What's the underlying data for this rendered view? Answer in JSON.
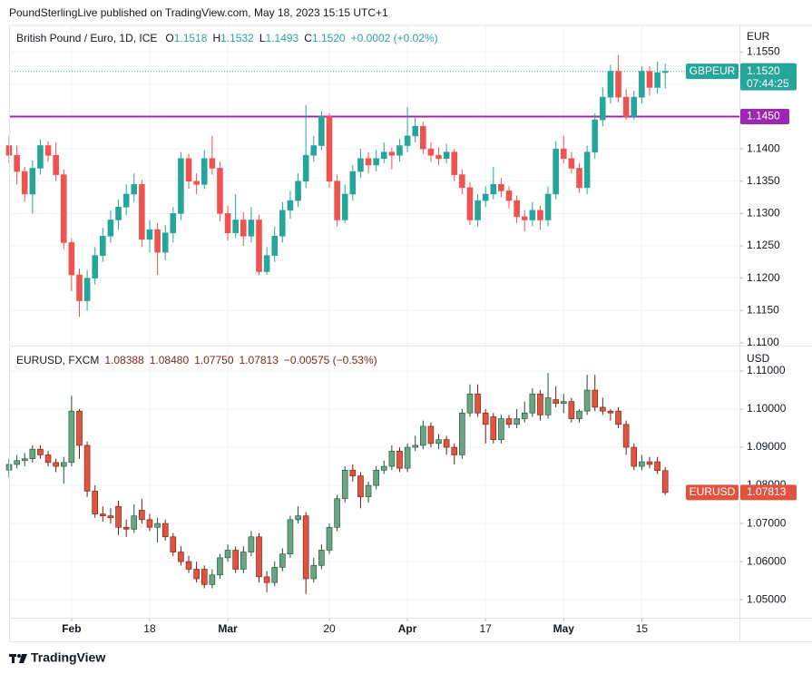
{
  "published": "PoundSterlingLive published on TradingView.com, May 18, 2023 15:15 UTC+1",
  "brand": "TradingView",
  "chart_data": [
    {
      "type": "candlestick",
      "symbol_title": "British Pound / Euro, 1D, ICE",
      "ohlc_legend": [
        {
          "label": "O",
          "value": "1.1518"
        },
        {
          "label": "H",
          "value": "1.1532"
        },
        {
          "label": "L",
          "value": "1.1493"
        },
        {
          "label": "C",
          "value": "1.1520"
        }
      ],
      "change": "+0.0002 (+0.02%)",
      "currency": "EUR",
      "symbol": "GBPEUR",
      "last_price": {
        "value": 1.152,
        "label": "1.1520"
      },
      "countdown": "07:44:25",
      "hline": {
        "value": 1.145,
        "label": "1.1450",
        "color": "#9c27b0"
      },
      "up_color": "#26a69a",
      "down_color": "#ef5350",
      "wick_up": "#26a69a",
      "wick_down": "#ef5350",
      "label_color": "#26a69a",
      "legend_color": "#26a69a",
      "grid": true,
      "xlim": [
        0,
        93.5
      ],
      "ylim": [
        1.1097,
        1.1591
      ],
      "yticks": [
        {
          "value": 1.11,
          "label": "1.1100"
        },
        {
          "value": 1.115,
          "label": "1.1150"
        },
        {
          "value": 1.12,
          "label": "1.1200"
        },
        {
          "value": 1.125,
          "label": "1.1250"
        },
        {
          "value": 1.13,
          "label": "1.1300"
        },
        {
          "value": 1.135,
          "label": "1.1350"
        },
        {
          "value": 1.14,
          "label": "1.1400"
        },
        {
          "value": 1.145,
          "label": "1.1450"
        },
        {
          "value": 1.15,
          "label": "1.1500"
        },
        {
          "value": 1.155,
          "label": "1.1550"
        }
      ],
      "ohlc": [
        [
          1.1405,
          1.142,
          1.1378,
          1.139
        ],
        [
          1.139,
          1.1405,
          1.1345,
          1.1365
        ],
        [
          1.1365,
          1.1372,
          1.1318,
          1.133
        ],
        [
          1.133,
          1.1382,
          1.13,
          1.137
        ],
        [
          1.137,
          1.1415,
          1.136,
          1.1405
        ],
        [
          1.1405,
          1.1412,
          1.138,
          1.139
        ],
        [
          1.139,
          1.141,
          1.135,
          1.136
        ],
        [
          1.136,
          1.1368,
          1.1245,
          1.1255
        ],
        [
          1.1255,
          1.1262,
          1.118,
          1.1205
        ],
        [
          1.1205,
          1.1215,
          1.114,
          1.1165
        ],
        [
          1.1165,
          1.1212,
          1.115,
          1.12
        ],
        [
          1.12,
          1.1248,
          1.119,
          1.1235
        ],
        [
          1.1235,
          1.1278,
          1.1225,
          1.1265
        ],
        [
          1.1265,
          1.1305,
          1.1255,
          1.129
        ],
        [
          1.129,
          1.1322,
          1.1275,
          1.131
        ],
        [
          1.131,
          1.1345,
          1.1298,
          1.133
        ],
        [
          1.133,
          1.1362,
          1.1318,
          1.1345
        ],
        [
          1.1345,
          1.1352,
          1.1248,
          1.126
        ],
        [
          1.126,
          1.129,
          1.124,
          1.1275
        ],
        [
          1.1275,
          1.1285,
          1.1205,
          1.124
        ],
        [
          1.124,
          1.1282,
          1.1228,
          1.127
        ],
        [
          1.127,
          1.131,
          1.1255,
          1.13
        ],
        [
          1.13,
          1.1395,
          1.129,
          1.1385
        ],
        [
          1.1385,
          1.1392,
          1.1338,
          1.135
        ],
        [
          1.135,
          1.1362,
          1.133,
          1.1345
        ],
        [
          1.1345,
          1.1398,
          1.1338,
          1.1385
        ],
        [
          1.1385,
          1.142,
          1.136,
          1.137
        ],
        [
          1.137,
          1.138,
          1.1288,
          1.13
        ],
        [
          1.13,
          1.1312,
          1.1258,
          1.127
        ],
        [
          1.127,
          1.133,
          1.1262,
          1.129
        ],
        [
          1.129,
          1.1302,
          1.125,
          1.1265
        ],
        [
          1.1265,
          1.131,
          1.1255,
          1.129
        ],
        [
          1.129,
          1.1298,
          1.1205,
          1.121
        ],
        [
          1.121,
          1.1248,
          1.1205,
          1.1235
        ],
        [
          1.1235,
          1.128,
          1.1225,
          1.1265
        ],
        [
          1.1265,
          1.1318,
          1.1255,
          1.1305
        ],
        [
          1.1305,
          1.1335,
          1.1292,
          1.132
        ],
        [
          1.132,
          1.1362,
          1.131,
          1.135
        ],
        [
          1.135,
          1.1468,
          1.134,
          1.139
        ],
        [
          1.139,
          1.142,
          1.138,
          1.1405
        ],
        [
          1.1405,
          1.1458,
          1.1398,
          1.145
        ],
        [
          1.145,
          1.1455,
          1.134,
          1.135
        ],
        [
          1.135,
          1.136,
          1.128,
          1.129
        ],
        [
          1.129,
          1.1345,
          1.1285,
          1.133
        ],
        [
          1.133,
          1.1375,
          1.132,
          1.1365
        ],
        [
          1.1365,
          1.14,
          1.1355,
          1.1385
        ],
        [
          1.1385,
          1.1395,
          1.1362,
          1.1375
        ],
        [
          1.1375,
          1.1398,
          1.1365,
          1.1385
        ],
        [
          1.1385,
          1.141,
          1.1378,
          1.1395
        ],
        [
          1.1395,
          1.1402,
          1.1368,
          1.139
        ],
        [
          1.139,
          1.1415,
          1.138,
          1.1405
        ],
        [
          1.1405,
          1.1465,
          1.1395,
          1.142
        ],
        [
          1.142,
          1.1448,
          1.141,
          1.1435
        ],
        [
          1.1435,
          1.1442,
          1.1392,
          1.14
        ],
        [
          1.14,
          1.141,
          1.138,
          1.139
        ],
        [
          1.139,
          1.1402,
          1.1375,
          1.1385
        ],
        [
          1.1385,
          1.1408,
          1.1378,
          1.1395
        ],
        [
          1.1395,
          1.14,
          1.135,
          1.136
        ],
        [
          1.136,
          1.1368,
          1.133,
          1.134
        ],
        [
          1.134,
          1.1348,
          1.1282,
          1.129
        ],
        [
          1.129,
          1.133,
          1.128,
          1.132
        ],
        [
          1.132,
          1.1342,
          1.131,
          1.133
        ],
        [
          1.133,
          1.1372,
          1.1322,
          1.1345
        ],
        [
          1.1345,
          1.1355,
          1.1325,
          1.1335
        ],
        [
          1.1335,
          1.1342,
          1.1308,
          1.132
        ],
        [
          1.132,
          1.1328,
          1.1285,
          1.1295
        ],
        [
          1.1295,
          1.1305,
          1.1272,
          1.129
        ],
        [
          1.129,
          1.1318,
          1.128,
          1.1305
        ],
        [
          1.1305,
          1.1312,
          1.1275,
          1.129
        ],
        [
          1.129,
          1.1342,
          1.128,
          1.133
        ],
        [
          1.133,
          1.1412,
          1.1322,
          1.14
        ],
        [
          1.14,
          1.142,
          1.1378,
          1.1385
        ],
        [
          1.1385,
          1.1395,
          1.1362,
          1.137
        ],
        [
          1.137,
          1.1378,
          1.1332,
          1.134
        ],
        [
          1.134,
          1.1405,
          1.133,
          1.1395
        ],
        [
          1.1395,
          1.1455,
          1.1385,
          1.1445
        ],
        [
          1.1445,
          1.1495,
          1.1435,
          1.148
        ],
        [
          1.148,
          1.153,
          1.147,
          1.152
        ],
        [
          1.152,
          1.1545,
          1.1472,
          1.148
        ],
        [
          1.148,
          1.1492,
          1.1445,
          1.145
        ],
        [
          1.145,
          1.149,
          1.1445,
          1.148
        ],
        [
          1.148,
          1.1528,
          1.147,
          1.152
        ],
        [
          1.152,
          1.1528,
          1.1482,
          1.1495
        ],
        [
          1.1495,
          1.1535,
          1.1485,
          1.1518
        ],
        [
          1.1518,
          1.1532,
          1.1493,
          1.152
        ]
      ]
    },
    {
      "type": "candlestick",
      "symbol_title": "EURUSD, FXCM",
      "ohlc_legend": [
        {
          "label": "",
          "value": "1.08388"
        },
        {
          "label": "",
          "value": "1.08480"
        },
        {
          "label": "",
          "value": "1.07750"
        },
        {
          "label": "",
          "value": "1.07813"
        }
      ],
      "change": "−0.00575 (−0.53%)",
      "currency": "USD",
      "symbol": "EURUSD",
      "last_price": {
        "value": 1.07813,
        "label": "1.07813"
      },
      "up_color": "#6aa583",
      "down_color": "#e0533f",
      "wick_up": "#1f4d33",
      "wick_down": "#6b1d12",
      "label_color": "#e0533f",
      "legend_color": "#7a2a1d",
      "grid": true,
      "xlim": [
        0,
        93.5
      ],
      "ylim": [
        1.0455,
        1.1162
      ],
      "xticks": [
        {
          "value": 8,
          "label": "Feb"
        },
        18,
        {
          "value": 28,
          "label": "Mar"
        },
        {
          "value": 41,
          "label": "20"
        },
        {
          "value": 51,
          "label": "Apr"
        },
        {
          "value": 61,
          "label": "17"
        },
        {
          "value": 71,
          "label": "May"
        },
        {
          "value": 81,
          "label": "15"
        }
      ],
      "yticks": [
        {
          "value": 1.05,
          "label": "1.05000"
        },
        {
          "value": 1.06,
          "label": "1.06000"
        },
        {
          "value": 1.07,
          "label": "1.07000"
        },
        {
          "value": 1.08,
          "label": "1.08000"
        },
        {
          "value": 1.09,
          "label": "1.09000"
        },
        {
          "value": 1.1,
          "label": "1.10000"
        },
        {
          "value": 1.11,
          "label": "1.11000"
        }
      ],
      "ohlc": [
        [
          1.084,
          1.087,
          1.082,
          1.0855
        ],
        [
          1.0855,
          1.088,
          1.0845,
          1.0865
        ],
        [
          1.0865,
          1.0885,
          1.085,
          1.087
        ],
        [
          1.087,
          1.0905,
          1.086,
          1.0895
        ],
        [
          1.0895,
          1.0905,
          1.087,
          1.088
        ],
        [
          1.088,
          1.089,
          1.085,
          1.086
        ],
        [
          1.086,
          1.087,
          1.0835,
          1.085
        ],
        [
          1.085,
          1.0875,
          1.0805,
          1.086
        ],
        [
          1.086,
          1.1035,
          1.085,
          1.0995
        ],
        [
          1.0995,
          1.1,
          1.087,
          1.0905
        ],
        [
          1.0905,
          1.0915,
          1.077,
          1.0785
        ],
        [
          1.0785,
          1.08,
          1.0715,
          1.0725
        ],
        [
          1.0725,
          1.0745,
          1.0705,
          1.072
        ],
        [
          1.072,
          1.074,
          1.07,
          1.0715
        ],
        [
          1.0745,
          1.076,
          1.067,
          1.069
        ],
        [
          1.069,
          1.071,
          1.0665,
          1.0685
        ],
        [
          1.0685,
          1.075,
          1.0675,
          1.072
        ],
        [
          1.0735,
          1.0765,
          1.07,
          1.071
        ],
        [
          1.071,
          1.0725,
          1.068,
          1.069
        ],
        [
          1.069,
          1.0715,
          1.065,
          1.07
        ],
        [
          1.07,
          1.071,
          1.0655,
          1.0665
        ],
        [
          1.0665,
          1.0675,
          1.0615,
          1.0625
        ],
        [
          1.0625,
          1.064,
          1.059,
          1.06
        ],
        [
          1.06,
          1.0615,
          1.057,
          1.058
        ],
        [
          1.058,
          1.06,
          1.0545,
          1.0555
        ],
        [
          1.058,
          1.059,
          1.053,
          1.054
        ],
        [
          1.054,
          1.058,
          1.053,
          1.0565
        ],
        [
          1.0565,
          1.062,
          1.0555,
          1.061
        ],
        [
          1.061,
          1.0645,
          1.06,
          1.063
        ],
        [
          1.063,
          1.064,
          1.057,
          1.058
        ],
        [
          1.058,
          1.064,
          1.057,
          1.0625
        ],
        [
          1.0625,
          1.068,
          1.0615,
          1.0665
        ],
        [
          1.0665,
          1.0675,
          1.0545,
          1.056
        ],
        [
          1.056,
          1.0575,
          1.052,
          1.0545
        ],
        [
          1.0545,
          1.06,
          1.0535,
          1.0585
        ],
        [
          1.0585,
          1.0635,
          1.0575,
          1.062
        ],
        [
          1.062,
          1.072,
          1.061,
          1.071
        ],
        [
          1.071,
          1.0745,
          1.07,
          1.072
        ],
        [
          1.072,
          1.073,
          1.0515,
          1.0555
        ],
        [
          1.0555,
          1.061,
          1.0545,
          1.059
        ],
        [
          1.059,
          1.0645,
          1.058,
          1.063
        ],
        [
          1.063,
          1.07,
          1.062,
          1.069
        ],
        [
          1.069,
          1.0775,
          1.068,
          1.0765
        ],
        [
          1.0765,
          1.085,
          1.0755,
          1.084
        ],
        [
          1.084,
          1.0855,
          1.081,
          1.0825
        ],
        [
          1.0825,
          1.0835,
          1.074,
          1.077
        ],
        [
          1.077,
          1.081,
          1.0755,
          1.08
        ],
        [
          1.08,
          1.085,
          1.079,
          1.084
        ],
        [
          1.084,
          1.0865,
          1.083,
          1.085
        ],
        [
          1.085,
          1.0905,
          1.084,
          1.089
        ],
        [
          1.089,
          1.09,
          1.0835,
          1.0845
        ],
        [
          1.0845,
          1.091,
          1.0835,
          1.09
        ],
        [
          1.09,
          1.093,
          1.089,
          1.0905
        ],
        [
          1.0905,
          1.097,
          1.0895,
          1.0955
        ],
        [
          1.0955,
          1.0965,
          1.09,
          1.091
        ],
        [
          1.091,
          1.0935,
          1.0895,
          1.092
        ],
        [
          1.092,
          1.093,
          1.088,
          1.09
        ],
        [
          1.09,
          1.091,
          1.0855,
          1.088
        ],
        [
          1.088,
          1.1,
          1.087,
          1.099
        ],
        [
          1.099,
          1.1065,
          1.098,
          1.104
        ],
        [
          1.104,
          1.1065,
          1.098,
          1.099
        ],
        [
          1.099,
          1.1,
          1.091,
          1.096
        ],
        [
          1.098,
          1.099,
          1.091,
          1.092
        ],
        [
          1.092,
          1.0985,
          1.091,
          1.0975
        ],
        [
          1.0975,
          1.0985,
          1.095,
          1.096
        ],
        [
          1.096,
          1.1,
          1.095,
          1.0975
        ],
        [
          1.0975,
          1.102,
          1.0965,
          1.099
        ],
        [
          1.099,
          1.1055,
          1.098,
          1.104
        ],
        [
          1.104,
          1.105,
          1.097,
          1.0985
        ],
        [
          1.0985,
          1.1095,
          1.0975,
          1.103
        ],
        [
          1.1025,
          1.106,
          1.1005,
          1.1015
        ],
        [
          1.1015,
          1.104,
          1.099,
          1.102
        ],
        [
          1.102,
          1.103,
          1.0965,
          1.0975
        ],
        [
          1.0975,
          1.1,
          1.0965,
          1.0995
        ],
        [
          1.0995,
          1.109,
          1.0985,
          1.105
        ],
        [
          1.105,
          1.109,
          1.0995,
          1.1005
        ],
        [
          1.1005,
          1.103,
          1.0985,
          1.0995
        ],
        [
          1.0995,
          1.1,
          1.097,
          1.099
        ],
        [
          1.0995,
          1.1005,
          1.095,
          1.096
        ],
        [
          1.096,
          1.097,
          1.088,
          1.09
        ],
        [
          1.09,
          1.091,
          1.084,
          1.085
        ],
        [
          1.085,
          1.088,
          1.084,
          1.0862
        ],
        [
          1.0862,
          1.0875,
          1.0845,
          1.0855
        ],
        [
          1.0862,
          1.0875,
          1.083,
          1.0839
        ],
        [
          1.08388,
          1.0848,
          1.0775,
          1.07813
        ]
      ]
    }
  ]
}
